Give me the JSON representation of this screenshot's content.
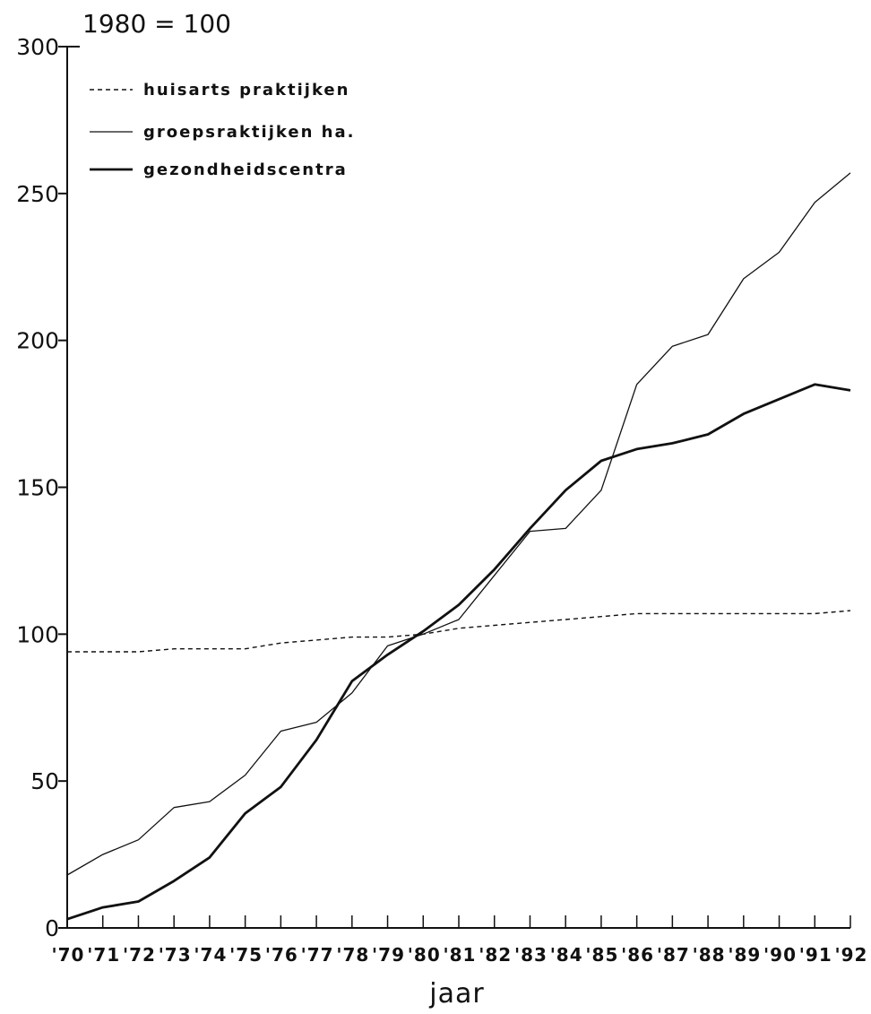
{
  "chart_data": {
    "type": "line",
    "title": "1980 = 100",
    "xlabel": "jaar",
    "ylabel": "",
    "categories": [
      "'70",
      "'71",
      "'72",
      "'73",
      "'74",
      "'75",
      "'76",
      "'77",
      "'78",
      "'79",
      "'80",
      "'81",
      "'82",
      "'83",
      "'84",
      "'85",
      "'86",
      "'87",
      "'88",
      "'89",
      "'90",
      "'91",
      "'92"
    ],
    "ylim": [
      0,
      300
    ],
    "yticks": [
      0,
      50,
      100,
      150,
      200,
      250,
      300
    ],
    "grid": false,
    "legend_position": "top-left",
    "series": [
      {
        "name": "huisarts praktijken",
        "style": "dashed",
        "color": "#111111",
        "values": [
          94,
          94,
          94,
          95,
          95,
          95,
          97,
          98,
          99,
          99,
          100,
          102,
          103,
          104,
          105,
          106,
          107,
          107,
          107,
          107,
          107,
          107,
          108
        ]
      },
      {
        "name": "groepsraktijken ha.",
        "style": "thin",
        "color": "#111111",
        "values": [
          18,
          25,
          30,
          41,
          43,
          52,
          67,
          70,
          80,
          96,
          100,
          105,
          120,
          135,
          136,
          149,
          185,
          198,
          202,
          221,
          230,
          247,
          257
        ]
      },
      {
        "name": "gezondheidscentra",
        "style": "thick",
        "color": "#111111",
        "values": [
          3,
          7,
          9,
          16,
          24,
          39,
          48,
          64,
          84,
          93,
          101,
          110,
          122,
          136,
          149,
          159,
          163,
          165,
          168,
          175,
          180,
          185,
          183
        ]
      }
    ]
  }
}
